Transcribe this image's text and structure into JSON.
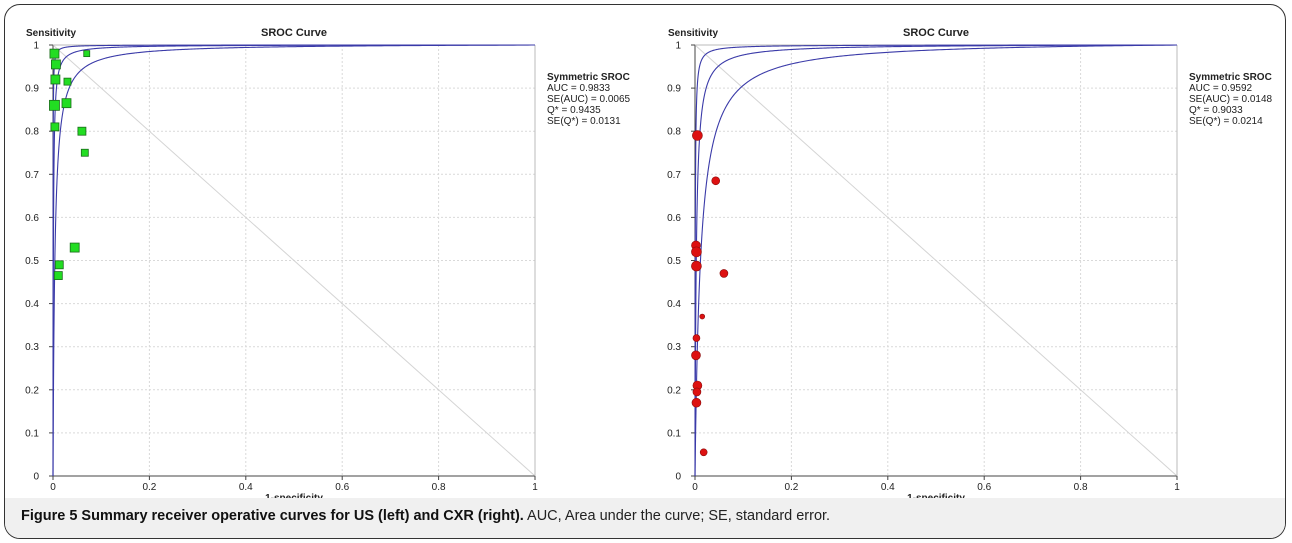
{
  "figure": {
    "caption_label": "Figure 5 Summary receiver operative curves for US (left) and CXR (right).",
    "caption_text": " AUC, Area under the curve; SE, standard error."
  },
  "chart_data": [
    {
      "type": "scatter",
      "title": "SROC Curve",
      "ylabel": "Sensitivity",
      "xlabel": "1-specificity",
      "xlim": [
        0,
        1
      ],
      "ylim": [
        0,
        1
      ],
      "x_ticks": [
        "0",
        "0.2",
        "0.4",
        "0.6",
        "0.8",
        "1"
      ],
      "y_ticks": [
        "0",
        "0.1",
        "0.2",
        "0.3",
        "0.4",
        "0.5",
        "0.6",
        "0.7",
        "0.8",
        "0.9",
        "1"
      ],
      "grid": true,
      "marker": "square",
      "marker_color": "#22dd22",
      "curve_color": "#3a3aa8",
      "stats": {
        "title": "Symmetric SROC",
        "lines": [
          "AUC = 0.9833",
          "SE(AUC) = 0.0065",
          "Q* = 0.9435",
          "SE(Q*) = 0.0131"
        ]
      },
      "curve_dor": [
        260,
        1250,
        7000
      ],
      "points": [
        {
          "x": 0.003,
          "y": 0.98,
          "size": 9
        },
        {
          "x": 0.006,
          "y": 0.955,
          "size": 9
        },
        {
          "x": 0.005,
          "y": 0.92,
          "size": 9
        },
        {
          "x": 0.003,
          "y": 0.86,
          "size": 10
        },
        {
          "x": 0.004,
          "y": 0.81,
          "size": 8
        },
        {
          "x": 0.03,
          "y": 0.915,
          "size": 7
        },
        {
          "x": 0.07,
          "y": 0.98,
          "size": 6
        },
        {
          "x": 0.028,
          "y": 0.865,
          "size": 9
        },
        {
          "x": 0.06,
          "y": 0.8,
          "size": 8
        },
        {
          "x": 0.066,
          "y": 0.75,
          "size": 7
        },
        {
          "x": 0.045,
          "y": 0.53,
          "size": 9
        },
        {
          "x": 0.013,
          "y": 0.49,
          "size": 8
        },
        {
          "x": 0.011,
          "y": 0.465,
          "size": 8
        }
      ]
    },
    {
      "type": "scatter",
      "title": "SROC Curve",
      "ylabel": "Sensitivity",
      "xlabel": "1-specificity",
      "xlim": [
        0,
        1
      ],
      "ylim": [
        0,
        1
      ],
      "x_ticks": [
        "0",
        "0.2",
        "0.4",
        "0.6",
        "0.8",
        "1"
      ],
      "y_ticks": [
        "0",
        "0.1",
        "0.2",
        "0.3",
        "0.4",
        "0.5",
        "0.6",
        "0.7",
        "0.8",
        "0.9",
        "1"
      ],
      "grid": true,
      "marker": "circle",
      "marker_color": "#dd1111",
      "curve_color": "#3a3aa8",
      "stats": {
        "title": "Symmetric SROC",
        "lines": [
          "AUC = 0.9592",
          "SE(AUC) = 0.0148",
          "Q* = 0.9033",
          "SE(Q*) = 0.0214"
        ]
      },
      "curve_dor": [
        87,
        380,
        2000
      ],
      "points": [
        {
          "x": 0.005,
          "y": 0.79,
          "size": 10
        },
        {
          "x": 0.043,
          "y": 0.685,
          "size": 8
        },
        {
          "x": 0.002,
          "y": 0.535,
          "size": 9
        },
        {
          "x": 0.003,
          "y": 0.52,
          "size": 10
        },
        {
          "x": 0.003,
          "y": 0.487,
          "size": 10
        },
        {
          "x": 0.06,
          "y": 0.47,
          "size": 8
        },
        {
          "x": 0.015,
          "y": 0.37,
          "size": 5
        },
        {
          "x": 0.003,
          "y": 0.32,
          "size": 7
        },
        {
          "x": 0.002,
          "y": 0.28,
          "size": 9
        },
        {
          "x": 0.005,
          "y": 0.21,
          "size": 9
        },
        {
          "x": 0.004,
          "y": 0.195,
          "size": 8
        },
        {
          "x": 0.003,
          "y": 0.17,
          "size": 9
        },
        {
          "x": 0.018,
          "y": 0.055,
          "size": 7
        }
      ]
    }
  ]
}
